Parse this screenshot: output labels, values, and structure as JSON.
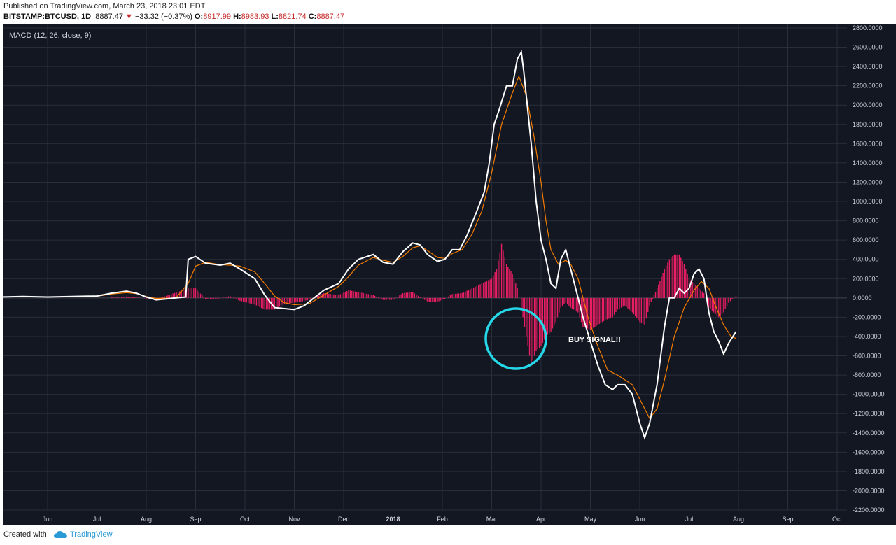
{
  "header": {
    "published": "Published on TradingView.com, March 23, 2018 23:01 EDT",
    "symbol": "BITSTAMP:BTCUSD, 1D",
    "last": "8887.47",
    "change": "−33.32 (−0.37%)",
    "o_label": "O:",
    "o_value": "8917.99",
    "h_label": "H:",
    "h_value": "8983.93",
    "l_label": "L:",
    "l_value": "8821.74",
    "c_label": "C:",
    "c_value": "8887.47"
  },
  "footer": {
    "created_with": "Created with",
    "brand": "TradingView"
  },
  "colors": {
    "background": "#131722",
    "macd": "#ffffff",
    "signal": "#f57c00",
    "histogram": "#e91e63",
    "annotation": "#26d7e8",
    "grid": "#2a2e39"
  },
  "chart_data": {
    "type": "line",
    "title": "MACD (12, 26, close, 9)",
    "annotation": "BUY SIGNAL!!",
    "ylim": [
      -2200,
      2800
    ],
    "y_ticks": [
      "2800.0000",
      "2600.0000",
      "2400.0000",
      "2200.0000",
      "2000.0000",
      "1800.0000",
      "1600.0000",
      "1400.0000",
      "1200.0000",
      "1000.0000",
      "800.0000",
      "600.0000",
      "400.0000",
      "200.0000",
      "0.0000",
      "-200.0000",
      "-400.0000",
      "-600.0000",
      "-800.0000",
      "-1000.0000",
      "-1200.0000",
      "-1400.0000",
      "-1600.0000",
      "-1800.0000",
      "-2000.0000",
      "-2200.0000"
    ],
    "x_ticks": [
      "Jun",
      "Jul",
      "Aug",
      "Sep",
      "Oct",
      "Nov",
      "Dec",
      "2018",
      "Feb",
      "Mar",
      "Apr",
      "May",
      "Jun",
      "Jul",
      "Aug",
      "Sep",
      "Oct"
    ],
    "grid": true,
    "series": [
      {
        "name": "MACD",
        "points": [
          [
            -3.0,
            0
          ],
          [
            -2.5,
            5
          ],
          [
            -2.0,
            20
          ],
          [
            -1.5,
            15
          ],
          [
            -1.0,
            10
          ],
          [
            -0.5,
            15
          ],
          [
            0,
            10
          ],
          [
            0.5,
            15
          ],
          [
            1.0,
            20
          ],
          [
            1.3,
            50
          ],
          [
            1.6,
            70
          ],
          [
            1.8,
            50
          ],
          [
            2.0,
            10
          ],
          [
            2.2,
            -20
          ],
          [
            2.4,
            -10
          ],
          [
            2.6,
            0
          ],
          [
            2.8,
            10
          ],
          [
            2.85,
            400
          ],
          [
            3.0,
            430
          ],
          [
            3.2,
            360
          ],
          [
            3.5,
            340
          ],
          [
            3.7,
            360
          ],
          [
            3.9,
            300
          ],
          [
            4.2,
            200
          ],
          [
            4.4,
            30
          ],
          [
            4.6,
            -100
          ],
          [
            4.8,
            -110
          ],
          [
            5.0,
            -120
          ],
          [
            5.2,
            -80
          ],
          [
            5.4,
            0
          ],
          [
            5.6,
            80
          ],
          [
            5.9,
            150
          ],
          [
            6.1,
            300
          ],
          [
            6.3,
            400
          ],
          [
            6.6,
            450
          ],
          [
            6.8,
            370
          ],
          [
            7.0,
            350
          ],
          [
            7.2,
            480
          ],
          [
            7.4,
            570
          ],
          [
            7.55,
            550
          ],
          [
            7.7,
            450
          ],
          [
            7.9,
            380
          ],
          [
            8.05,
            400
          ],
          [
            8.2,
            500
          ],
          [
            8.35,
            500
          ],
          [
            8.5,
            650
          ],
          [
            8.7,
            900
          ],
          [
            8.85,
            1100
          ],
          [
            8.95,
            1400
          ],
          [
            9.05,
            1800
          ],
          [
            9.15,
            1950
          ],
          [
            9.3,
            2200
          ],
          [
            9.42,
            2200
          ],
          [
            9.52,
            2480
          ],
          [
            9.6,
            2550
          ],
          [
            9.65,
            2350
          ],
          [
            9.8,
            1600
          ],
          [
            9.9,
            1000
          ],
          [
            10.0,
            600
          ],
          [
            10.1,
            400
          ],
          [
            10.2,
            150
          ],
          [
            10.3,
            100
          ],
          [
            10.4,
            400
          ],
          [
            10.5,
            500
          ],
          [
            10.6,
            300
          ],
          [
            10.75,
            0
          ],
          [
            10.85,
            -200
          ],
          [
            11.0,
            -450
          ],
          [
            11.15,
            -700
          ],
          [
            11.3,
            -900
          ],
          [
            11.45,
            -950
          ],
          [
            11.55,
            -900
          ],
          [
            11.7,
            -900
          ],
          [
            11.85,
            -1000
          ],
          [
            12.0,
            -1300
          ],
          [
            12.1,
            -1450
          ],
          [
            12.2,
            -1300
          ],
          [
            12.35,
            -900
          ],
          [
            12.5,
            -300
          ],
          [
            12.6,
            0
          ],
          [
            12.7,
            0
          ],
          [
            12.8,
            100
          ],
          [
            12.9,
            50
          ],
          [
            13.0,
            100
          ],
          [
            13.1,
            250
          ],
          [
            13.2,
            300
          ],
          [
            13.3,
            200
          ],
          [
            13.4,
            -150
          ],
          [
            13.5,
            -350
          ],
          [
            13.6,
            -450
          ],
          [
            13.7,
            -580
          ],
          [
            13.8,
            -470
          ],
          [
            13.95,
            -350
          ]
        ]
      },
      {
        "name": "Signal",
        "points": [
          [
            -3.0,
            0
          ],
          [
            -2.0,
            12
          ],
          [
            -1.0,
            12
          ],
          [
            0,
            12
          ],
          [
            1.0,
            18
          ],
          [
            1.3,
            40
          ],
          [
            1.6,
            55
          ],
          [
            1.8,
            45
          ],
          [
            2.0,
            15
          ],
          [
            2.2,
            -5
          ],
          [
            2.6,
            0
          ],
          [
            2.85,
            150
          ],
          [
            3.0,
            330
          ],
          [
            3.2,
            370
          ],
          [
            3.5,
            345
          ],
          [
            3.7,
            340
          ],
          [
            3.9,
            330
          ],
          [
            4.2,
            270
          ],
          [
            4.4,
            150
          ],
          [
            4.6,
            20
          ],
          [
            4.8,
            -50
          ],
          [
            5.0,
            -70
          ],
          [
            5.3,
            -60
          ],
          [
            5.6,
            30
          ],
          [
            5.9,
            120
          ],
          [
            6.1,
            220
          ],
          [
            6.3,
            340
          ],
          [
            6.6,
            420
          ],
          [
            6.8,
            390
          ],
          [
            7.0,
            370
          ],
          [
            7.2,
            430
          ],
          [
            7.4,
            520
          ],
          [
            7.55,
            540
          ],
          [
            7.7,
            490
          ],
          [
            7.9,
            420
          ],
          [
            8.05,
            410
          ],
          [
            8.2,
            460
          ],
          [
            8.4,
            500
          ],
          [
            8.6,
            660
          ],
          [
            8.8,
            900
          ],
          [
            9.0,
            1300
          ],
          [
            9.2,
            1800
          ],
          [
            9.4,
            2100
          ],
          [
            9.55,
            2300
          ],
          [
            9.7,
            2100
          ],
          [
            9.85,
            1700
          ],
          [
            10.0,
            1200
          ],
          [
            10.1,
            800
          ],
          [
            10.2,
            500
          ],
          [
            10.35,
            350
          ],
          [
            10.5,
            390
          ],
          [
            10.6,
            350
          ],
          [
            10.75,
            200
          ],
          [
            10.95,
            -200
          ],
          [
            11.15,
            -500
          ],
          [
            11.35,
            -750
          ],
          [
            11.55,
            -800
          ],
          [
            11.7,
            -850
          ],
          [
            11.85,
            -900
          ],
          [
            12.0,
            -1050
          ],
          [
            12.2,
            -1250
          ],
          [
            12.35,
            -1150
          ],
          [
            12.5,
            -850
          ],
          [
            12.7,
            -400
          ],
          [
            12.9,
            -100
          ],
          [
            13.1,
            80
          ],
          [
            13.25,
            170
          ],
          [
            13.4,
            100
          ],
          [
            13.55,
            -100
          ],
          [
            13.7,
            -280
          ],
          [
            13.85,
            -400
          ],
          [
            13.95,
            -420
          ]
        ]
      },
      {
        "name": "Histogram",
        "points": [
          [
            1.3,
            10
          ],
          [
            1.6,
            15
          ],
          [
            2.0,
            -5
          ],
          [
            2.2,
            -15
          ],
          [
            2.85,
            100
          ],
          [
            3.0,
            100
          ],
          [
            3.2,
            -10
          ],
          [
            3.5,
            -5
          ],
          [
            3.7,
            20
          ],
          [
            3.9,
            -30
          ],
          [
            4.2,
            -70
          ],
          [
            4.4,
            -120
          ],
          [
            4.6,
            -120
          ],
          [
            4.8,
            -60
          ],
          [
            5.0,
            -50
          ],
          [
            5.3,
            -20
          ],
          [
            5.6,
            50
          ],
          [
            5.9,
            30
          ],
          [
            6.1,
            80
          ],
          [
            6.3,
            60
          ],
          [
            6.6,
            30
          ],
          [
            6.8,
            -20
          ],
          [
            7.0,
            -20
          ],
          [
            7.2,
            50
          ],
          [
            7.4,
            60
          ],
          [
            7.55,
            10
          ],
          [
            7.7,
            -40
          ],
          [
            7.9,
            -40
          ],
          [
            8.05,
            -10
          ],
          [
            8.2,
            40
          ],
          [
            8.4,
            50
          ],
          [
            8.6,
            100
          ],
          [
            8.8,
            150
          ],
          [
            9.0,
            200
          ],
          [
            9.1,
            300
          ],
          [
            9.2,
            560
          ],
          [
            9.3,
            350
          ],
          [
            9.42,
            250
          ],
          [
            9.52,
            100
          ],
          [
            9.6,
            -100
          ],
          [
            9.8,
            -700
          ],
          [
            9.9,
            -550
          ],
          [
            10.0,
            -500
          ],
          [
            10.1,
            -400
          ],
          [
            10.2,
            -350
          ],
          [
            10.3,
            -250
          ],
          [
            10.4,
            -100
          ],
          [
            10.5,
            -50
          ],
          [
            10.6,
            -100
          ],
          [
            10.75,
            -150
          ],
          [
            10.85,
            -300
          ],
          [
            11.0,
            -330
          ],
          [
            11.15,
            -280
          ],
          [
            11.3,
            -230
          ],
          [
            11.45,
            -200
          ],
          [
            11.55,
            -120
          ],
          [
            11.7,
            -80
          ],
          [
            11.85,
            -150
          ],
          [
            12.0,
            -250
          ],
          [
            12.1,
            -280
          ],
          [
            12.2,
            -80
          ],
          [
            12.35,
            100
          ],
          [
            12.5,
            300
          ],
          [
            12.6,
            400
          ],
          [
            12.7,
            450
          ],
          [
            12.8,
            450
          ],
          [
            12.9,
            350
          ],
          [
            13.0,
            200
          ],
          [
            13.1,
            150
          ],
          [
            13.2,
            100
          ],
          [
            13.3,
            50
          ],
          [
            13.4,
            -100
          ],
          [
            13.5,
            -150
          ],
          [
            13.6,
            -200
          ],
          [
            13.7,
            -150
          ],
          [
            13.8,
            -50
          ],
          [
            13.95,
            20
          ]
        ]
      }
    ]
  }
}
